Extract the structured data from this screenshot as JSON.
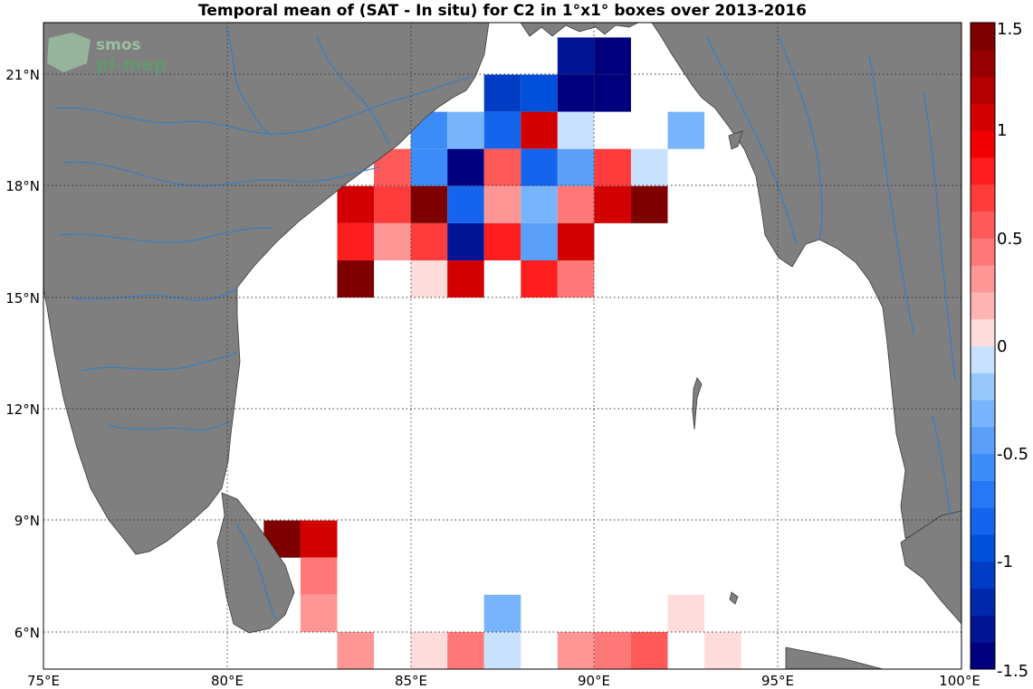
{
  "title": "Temporal mean of (SAT - In situ) for C2 in 1°x1° boxes over 2013-2016",
  "logo": {
    "line1": "smos",
    "line2": "pi-mep"
  },
  "chart_data": {
    "type": "heatmap",
    "title": "Temporal mean of (SAT - In situ) for C2 in 1°x1° boxes over 2013-2016",
    "x_ticks": [
      "75°E",
      "80°E",
      "85°E",
      "90°E",
      "95°E",
      "100°E"
    ],
    "y_ticks": [
      "6°N",
      "9°N",
      "12°N",
      "15°N",
      "18°N",
      "21°N"
    ],
    "xlim": [
      75,
      100
    ],
    "ylim": [
      5,
      22.4
    ],
    "grid": true,
    "colorbar": {
      "ticks": [
        "1.5",
        "1",
        "0.5",
        "0",
        "-0.5",
        "-1",
        "-1.5"
      ],
      "range": [
        -1.5,
        1.5
      ],
      "levels": 24,
      "colors": [
        "#00007f",
        "#001496",
        "#0028ad",
        "#003cc4",
        "#0050db",
        "#1464ee",
        "#2878f5",
        "#3c8cf8",
        "#5aa0fa",
        "#78b4fb",
        "#96c8fc",
        "#c8e1ff",
        "#ffdcdc",
        "#ffb4b4",
        "#ff9696",
        "#ff7878",
        "#ff5a5a",
        "#ff3c3c",
        "#ff1e1e",
        "#f00000",
        "#d20000",
        "#b40000",
        "#960000",
        "#7f0000"
      ]
    },
    "cells": [
      {
        "lon": 89.5,
        "lat": 21.5,
        "value": -1.3
      },
      {
        "lon": 90.5,
        "lat": 21.5,
        "value": -1.5
      },
      {
        "lon": 87.5,
        "lat": 20.5,
        "value": -1.1
      },
      {
        "lon": 88.5,
        "lat": 20.5,
        "value": -0.9
      },
      {
        "lon": 89.5,
        "lat": 20.5,
        "value": -1.5
      },
      {
        "lon": 90.5,
        "lat": 20.5,
        "value": -1.5
      },
      {
        "lon": 85.5,
        "lat": 19.5,
        "value": -0.6
      },
      {
        "lon": 86.5,
        "lat": 19.5,
        "value": -0.3
      },
      {
        "lon": 87.5,
        "lat": 19.5,
        "value": -0.8
      },
      {
        "lon": 88.5,
        "lat": 19.5,
        "value": 1.0
      },
      {
        "lon": 89.5,
        "lat": 19.5,
        "value": -0.1
      },
      {
        "lon": 92.5,
        "lat": 19.5,
        "value": -0.3
      },
      {
        "lon": 84.5,
        "lat": 18.5,
        "value": 0.5
      },
      {
        "lon": 85.5,
        "lat": 18.5,
        "value": -0.6
      },
      {
        "lon": 86.5,
        "lat": 18.5,
        "value": -1.4
      },
      {
        "lon": 87.5,
        "lat": 18.5,
        "value": 0.6
      },
      {
        "lon": 88.5,
        "lat": 18.5,
        "value": -0.8
      },
      {
        "lon": 89.5,
        "lat": 18.5,
        "value": -0.4
      },
      {
        "lon": 90.5,
        "lat": 18.5,
        "value": 0.7
      },
      {
        "lon": 91.5,
        "lat": 18.5,
        "value": -0.1
      },
      {
        "lon": 83.5,
        "lat": 17.5,
        "value": 1.0
      },
      {
        "lon": 84.5,
        "lat": 17.5,
        "value": 0.7
      },
      {
        "lon": 85.5,
        "lat": 17.5,
        "value": 1.5
      },
      {
        "lon": 86.5,
        "lat": 17.5,
        "value": -0.8
      },
      {
        "lon": 87.5,
        "lat": 17.5,
        "value": 0.3
      },
      {
        "lon": 88.5,
        "lat": 17.5,
        "value": -0.3
      },
      {
        "lon": 89.5,
        "lat": 17.5,
        "value": 0.4
      },
      {
        "lon": 90.5,
        "lat": 17.5,
        "value": 1.0
      },
      {
        "lon": 91.5,
        "lat": 17.5,
        "value": 1.5
      },
      {
        "lon": 83.5,
        "lat": 16.5,
        "value": 0.8
      },
      {
        "lon": 84.5,
        "lat": 16.5,
        "value": 0.3
      },
      {
        "lon": 85.5,
        "lat": 16.5,
        "value": 0.7
      },
      {
        "lon": 86.5,
        "lat": 16.5,
        "value": -1.3
      },
      {
        "lon": 87.5,
        "lat": 16.5,
        "value": 0.8
      },
      {
        "lon": 88.5,
        "lat": 16.5,
        "value": -0.5
      },
      {
        "lon": 89.5,
        "lat": 16.5,
        "value": 1.0
      },
      {
        "lon": 83.5,
        "lat": 15.5,
        "value": 1.5
      },
      {
        "lon": 85.5,
        "lat": 15.5,
        "value": 0.1
      },
      {
        "lon": 86.5,
        "lat": 15.5,
        "value": 1.1
      },
      {
        "lon": 88.5,
        "lat": 15.5,
        "value": 0.8
      },
      {
        "lon": 89.5,
        "lat": 15.5,
        "value": 0.4
      },
      {
        "lon": 81.5,
        "lat": 8.5,
        "value": 1.4
      },
      {
        "lon": 82.5,
        "lat": 8.5,
        "value": 1.0
      },
      {
        "lon": 82.5,
        "lat": 7.5,
        "value": 0.4
      },
      {
        "lon": 82.5,
        "lat": 6.5,
        "value": 0.3
      },
      {
        "lon": 87.5,
        "lat": 6.5,
        "value": -0.3
      },
      {
        "lon": 92.5,
        "lat": 6.5,
        "value": 0.1
      },
      {
        "lon": 83.5,
        "lat": 5.5,
        "value": 0.3
      },
      {
        "lon": 85.5,
        "lat": 5.5,
        "value": 0.1
      },
      {
        "lon": 86.5,
        "lat": 5.5,
        "value": 0.4
      },
      {
        "lon": 87.5,
        "lat": 5.5,
        "value": -0.1
      },
      {
        "lon": 89.5,
        "lat": 5.5,
        "value": 0.3
      },
      {
        "lon": 90.5,
        "lat": 5.5,
        "value": 0.4
      },
      {
        "lon": 91.5,
        "lat": 5.5,
        "value": 0.5
      },
      {
        "lon": 93.5,
        "lat": 5.5,
        "value": 0.1
      }
    ]
  }
}
